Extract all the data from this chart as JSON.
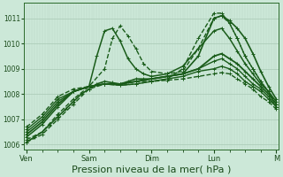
{
  "background_color": "#cce8d8",
  "plot_bg_color": "#cce8d8",
  "line_color": "#1a5c1a",
  "ylim": [
    1005.8,
    1011.6
  ],
  "yticks": [
    1006,
    1007,
    1008,
    1009,
    1010,
    1011
  ],
  "ytick_labels": [
    "1006",
    "1007",
    "1008",
    "1009",
    "1010",
    "1011"
  ],
  "xtick_positions": [
    0,
    24,
    48,
    72,
    96
  ],
  "xtick_labels": [
    "Ven",
    "Sam",
    "Dim",
    "Lun",
    "M"
  ],
  "xlabel": "Pression niveau de la mer( hPa )",
  "xlabel_fontsize": 8,
  "total_hours": 96,
  "series": [
    {
      "pts": [
        [
          0,
          1006.1
        ],
        [
          3,
          1006.3
        ],
        [
          6,
          1006.5
        ],
        [
          9,
          1006.8
        ],
        [
          12,
          1007.1
        ],
        [
          15,
          1007.4
        ],
        [
          18,
          1007.7
        ],
        [
          21,
          1008.0
        ],
        [
          24,
          1008.2
        ],
        [
          27,
          1008.4
        ],
        [
          30,
          1008.5
        ],
        [
          33,
          1008.45
        ],
        [
          36,
          1008.4
        ],
        [
          39,
          1008.5
        ],
        [
          42,
          1008.6
        ],
        [
          45,
          1008.6
        ],
        [
          48,
          1008.6
        ],
        [
          54,
          1008.7
        ],
        [
          60,
          1008.8
        ],
        [
          66,
          1009.5
        ],
        [
          72,
          1011.0
        ],
        [
          75,
          1011.1
        ],
        [
          78,
          1010.9
        ],
        [
          81,
          1010.6
        ],
        [
          84,
          1010.2
        ],
        [
          87,
          1009.6
        ],
        [
          90,
          1008.9
        ],
        [
          93,
          1008.3
        ],
        [
          96,
          1007.8
        ]
      ],
      "style": "-",
      "lw": 1.2,
      "dashed": false
    },
    {
      "pts": [
        [
          0,
          1006.1
        ],
        [
          6,
          1006.4
        ],
        [
          12,
          1007.0
        ],
        [
          18,
          1007.6
        ],
        [
          24,
          1008.2
        ],
        [
          30,
          1008.4
        ],
        [
          36,
          1008.4
        ],
        [
          42,
          1008.5
        ],
        [
          48,
          1008.5
        ],
        [
          54,
          1008.6
        ],
        [
          60,
          1009.0
        ],
        [
          66,
          1010.2
        ],
        [
          72,
          1011.2
        ],
        [
          75,
          1011.2
        ],
        [
          78,
          1010.8
        ],
        [
          81,
          1010.2
        ],
        [
          84,
          1009.5
        ],
        [
          87,
          1009.0
        ],
        [
          90,
          1008.5
        ],
        [
          93,
          1008.1
        ],
        [
          96,
          1007.5
        ]
      ],
      "style": "--",
      "lw": 1.0,
      "dashed": true
    },
    {
      "pts": [
        [
          0,
          1006.2
        ],
        [
          6,
          1006.5
        ],
        [
          12,
          1007.2
        ],
        [
          18,
          1007.8
        ],
        [
          24,
          1008.3
        ],
        [
          30,
          1009.0
        ],
        [
          33,
          1010.2
        ],
        [
          36,
          1010.7
        ],
        [
          39,
          1010.3
        ],
        [
          42,
          1009.8
        ],
        [
          45,
          1009.2
        ],
        [
          48,
          1008.9
        ],
        [
          54,
          1008.8
        ],
        [
          60,
          1008.9
        ],
        [
          66,
          1009.8
        ],
        [
          72,
          1011.0
        ],
        [
          75,
          1011.1
        ],
        [
          78,
          1010.8
        ],
        [
          81,
          1010.2
        ],
        [
          84,
          1009.5
        ],
        [
          87,
          1009.0
        ],
        [
          90,
          1008.5
        ],
        [
          93,
          1008.1
        ],
        [
          96,
          1007.6
        ]
      ],
      "style": "--",
      "lw": 1.0,
      "dashed": true
    },
    {
      "pts": [
        [
          0,
          1006.3
        ],
        [
          6,
          1006.8
        ],
        [
          12,
          1007.5
        ],
        [
          18,
          1008.1
        ],
        [
          24,
          1008.3
        ],
        [
          27,
          1009.5
        ],
        [
          30,
          1010.5
        ],
        [
          33,
          1010.6
        ],
        [
          36,
          1010.1
        ],
        [
          39,
          1009.4
        ],
        [
          42,
          1009.0
        ],
        [
          45,
          1008.8
        ],
        [
          48,
          1008.7
        ],
        [
          54,
          1008.8
        ],
        [
          60,
          1009.1
        ],
        [
          66,
          1009.8
        ],
        [
          72,
          1010.5
        ],
        [
          75,
          1010.6
        ],
        [
          78,
          1010.2
        ],
        [
          81,
          1009.7
        ],
        [
          84,
          1009.2
        ],
        [
          87,
          1008.8
        ],
        [
          90,
          1008.4
        ],
        [
          93,
          1008.1
        ],
        [
          96,
          1007.7
        ]
      ],
      "style": "-",
      "lw": 1.1,
      "dashed": false
    },
    {
      "pts": [
        [
          0,
          1006.4
        ],
        [
          6,
          1006.9
        ],
        [
          12,
          1007.6
        ],
        [
          18,
          1008.1
        ],
        [
          24,
          1008.3
        ],
        [
          30,
          1008.4
        ],
        [
          36,
          1008.4
        ],
        [
          42,
          1008.5
        ],
        [
          48,
          1008.6
        ],
        [
          54,
          1008.7
        ],
        [
          60,
          1008.8
        ],
        [
          66,
          1009.0
        ],
        [
          72,
          1009.5
        ],
        [
          75,
          1009.6
        ],
        [
          78,
          1009.4
        ],
        [
          81,
          1009.2
        ],
        [
          84,
          1008.9
        ],
        [
          87,
          1008.6
        ],
        [
          90,
          1008.3
        ],
        [
          93,
          1008.0
        ],
        [
          96,
          1007.6
        ]
      ],
      "style": "-",
      "lw": 1.3,
      "dashed": false
    },
    {
      "pts": [
        [
          0,
          1006.5
        ],
        [
          6,
          1007.0
        ],
        [
          12,
          1007.7
        ],
        [
          18,
          1008.1
        ],
        [
          24,
          1008.3
        ],
        [
          30,
          1008.4
        ],
        [
          36,
          1008.4
        ],
        [
          42,
          1008.5
        ],
        [
          48,
          1008.6
        ],
        [
          54,
          1008.7
        ],
        [
          60,
          1008.8
        ],
        [
          66,
          1009.0
        ],
        [
          72,
          1009.3
        ],
        [
          75,
          1009.4
        ],
        [
          78,
          1009.2
        ],
        [
          81,
          1009.0
        ],
        [
          84,
          1008.7
        ],
        [
          87,
          1008.4
        ],
        [
          90,
          1008.2
        ],
        [
          93,
          1007.9
        ],
        [
          96,
          1007.5
        ]
      ],
      "style": "-",
      "lw": 1.0,
      "dashed": false
    },
    {
      "pts": [
        [
          0,
          1006.6
        ],
        [
          6,
          1007.1
        ],
        [
          12,
          1007.8
        ],
        [
          18,
          1008.1
        ],
        [
          24,
          1008.3
        ],
        [
          30,
          1008.4
        ],
        [
          36,
          1008.35
        ],
        [
          42,
          1008.4
        ],
        [
          48,
          1008.5
        ],
        [
          54,
          1008.6
        ],
        [
          60,
          1008.7
        ],
        [
          66,
          1008.9
        ],
        [
          72,
          1009.0
        ],
        [
          75,
          1009.1
        ],
        [
          78,
          1009.0
        ],
        [
          81,
          1008.8
        ],
        [
          84,
          1008.5
        ],
        [
          87,
          1008.3
        ],
        [
          90,
          1008.1
        ],
        [
          93,
          1007.8
        ],
        [
          96,
          1007.5
        ]
      ],
      "style": "-",
      "lw": 1.0,
      "dashed": false
    },
    {
      "pts": [
        [
          0,
          1006.7
        ],
        [
          6,
          1007.2
        ],
        [
          12,
          1007.9
        ],
        [
          18,
          1008.2
        ],
        [
          24,
          1008.3
        ],
        [
          30,
          1008.4
        ],
        [
          36,
          1008.35
        ],
        [
          42,
          1008.4
        ],
        [
          48,
          1008.5
        ],
        [
          54,
          1008.55
        ],
        [
          60,
          1008.6
        ],
        [
          66,
          1008.7
        ],
        [
          72,
          1008.8
        ],
        [
          75,
          1008.85
        ],
        [
          78,
          1008.8
        ],
        [
          81,
          1008.6
        ],
        [
          84,
          1008.4
        ],
        [
          87,
          1008.2
        ],
        [
          90,
          1007.9
        ],
        [
          93,
          1007.7
        ],
        [
          96,
          1007.4
        ]
      ],
      "style": "--",
      "lw": 1.0,
      "dashed": true
    }
  ]
}
